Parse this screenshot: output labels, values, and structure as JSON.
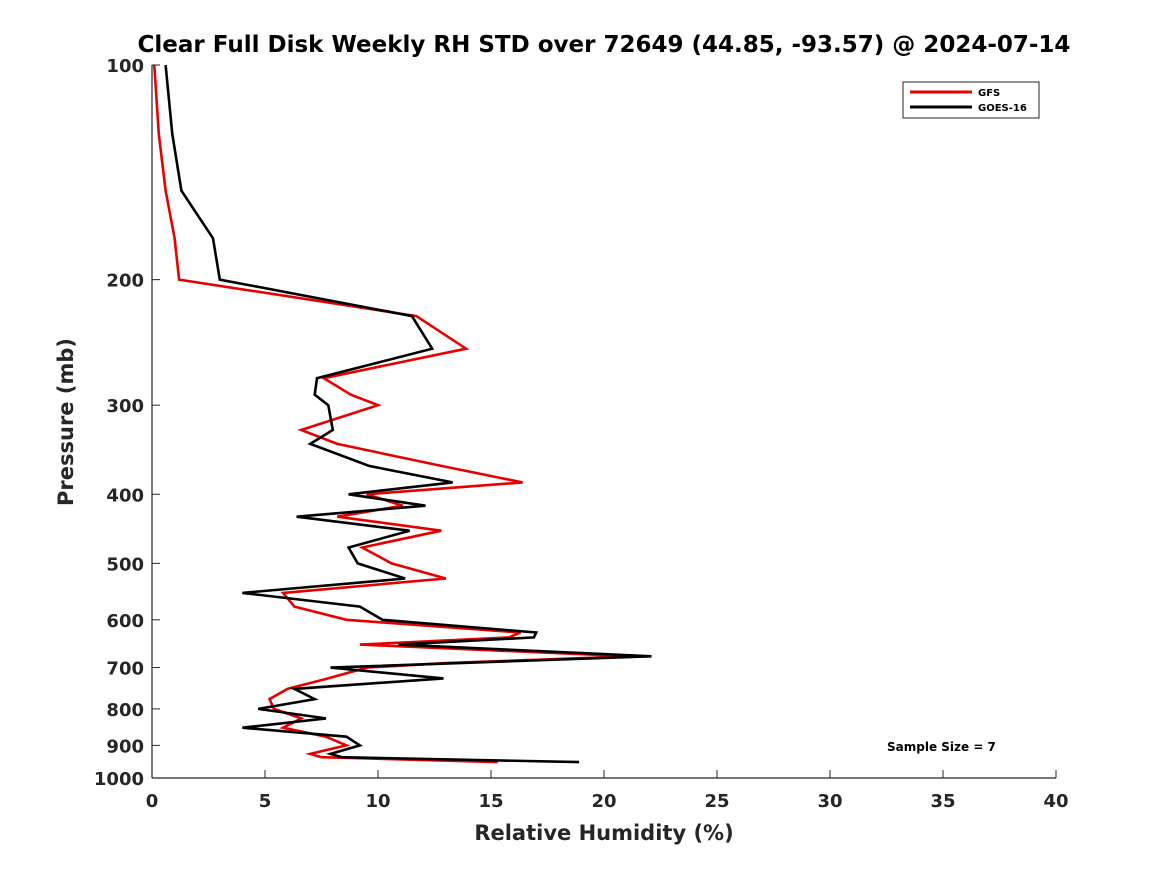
{
  "chart_data": {
    "type": "line",
    "title": "Clear Full Disk Weekly RH STD over 72649 (44.85, -93.57) @ 2024-07-14",
    "xlabel": "Relative Humidity (%)",
    "ylabel": "Pressure (mb)",
    "xlim": [
      0,
      40
    ],
    "ylim": [
      100,
      1000
    ],
    "y_scale": "log",
    "y_reversed": true,
    "x_ticks": [
      0,
      5,
      10,
      15,
      20,
      25,
      30,
      35,
      40
    ],
    "y_ticks": [
      100,
      200,
      300,
      400,
      500,
      600,
      700,
      800,
      900,
      1000
    ],
    "grid": false,
    "legend_position": "top-right",
    "annotation": "Sample Size = 7",
    "series": [
      {
        "name": "GFS",
        "color": "#e60000",
        "points": [
          [
            0.1,
            100
          ],
          [
            0.3,
            125
          ],
          [
            0.6,
            150
          ],
          [
            1.0,
            175
          ],
          [
            1.2,
            200
          ],
          [
            11.7,
            225
          ],
          [
            13.9,
            250
          ],
          [
            7.6,
            275
          ],
          [
            8.8,
            290
          ],
          [
            10.0,
            300
          ],
          [
            6.6,
            325
          ],
          [
            8.2,
            340
          ],
          [
            12.8,
            365
          ],
          [
            16.4,
            385
          ],
          [
            9.5,
            400
          ],
          [
            11.1,
            415
          ],
          [
            8.2,
            430
          ],
          [
            12.8,
            450
          ],
          [
            9.3,
            475
          ],
          [
            10.6,
            500
          ],
          [
            13.0,
            525
          ],
          [
            5.8,
            550
          ],
          [
            6.3,
            575
          ],
          [
            8.6,
            600
          ],
          [
            16.3,
            625
          ],
          [
            15.8,
            635
          ],
          [
            9.2,
            650
          ],
          [
            21.2,
            675
          ],
          [
            13.0,
            690
          ],
          [
            9.5,
            700
          ],
          [
            7.8,
            725
          ],
          [
            6.0,
            750
          ],
          [
            5.2,
            775
          ],
          [
            5.4,
            800
          ],
          [
            6.6,
            825
          ],
          [
            5.8,
            850
          ],
          [
            7.7,
            875
          ],
          [
            8.6,
            900
          ],
          [
            7.0,
            925
          ],
          [
            7.5,
            935
          ],
          [
            15.3,
            950
          ]
        ]
      },
      {
        "name": "GOES-16",
        "color": "#000000",
        "points": [
          [
            0.6,
            100
          ],
          [
            0.9,
            125
          ],
          [
            1.3,
            150
          ],
          [
            2.7,
            175
          ],
          [
            3.0,
            200
          ],
          [
            11.5,
            225
          ],
          [
            12.4,
            250
          ],
          [
            7.3,
            275
          ],
          [
            7.2,
            290
          ],
          [
            7.8,
            300
          ],
          [
            8.0,
            325
          ],
          [
            7.0,
            340
          ],
          [
            9.6,
            365
          ],
          [
            13.3,
            385
          ],
          [
            8.7,
            400
          ],
          [
            12.1,
            415
          ],
          [
            6.4,
            430
          ],
          [
            11.4,
            450
          ],
          [
            8.7,
            475
          ],
          [
            9.1,
            500
          ],
          [
            11.2,
            525
          ],
          [
            4.0,
            550
          ],
          [
            9.2,
            575
          ],
          [
            10.2,
            600
          ],
          [
            17.0,
            625
          ],
          [
            16.9,
            635
          ],
          [
            10.9,
            650
          ],
          [
            22.1,
            675
          ],
          [
            13.6,
            690
          ],
          [
            7.9,
            700
          ],
          [
            12.9,
            725
          ],
          [
            6.3,
            750
          ],
          [
            7.2,
            775
          ],
          [
            4.7,
            800
          ],
          [
            7.7,
            825
          ],
          [
            4.0,
            850
          ],
          [
            8.6,
            875
          ],
          [
            9.2,
            900
          ],
          [
            7.9,
            925
          ],
          [
            8.4,
            935
          ],
          [
            18.9,
            950
          ]
        ]
      }
    ]
  }
}
